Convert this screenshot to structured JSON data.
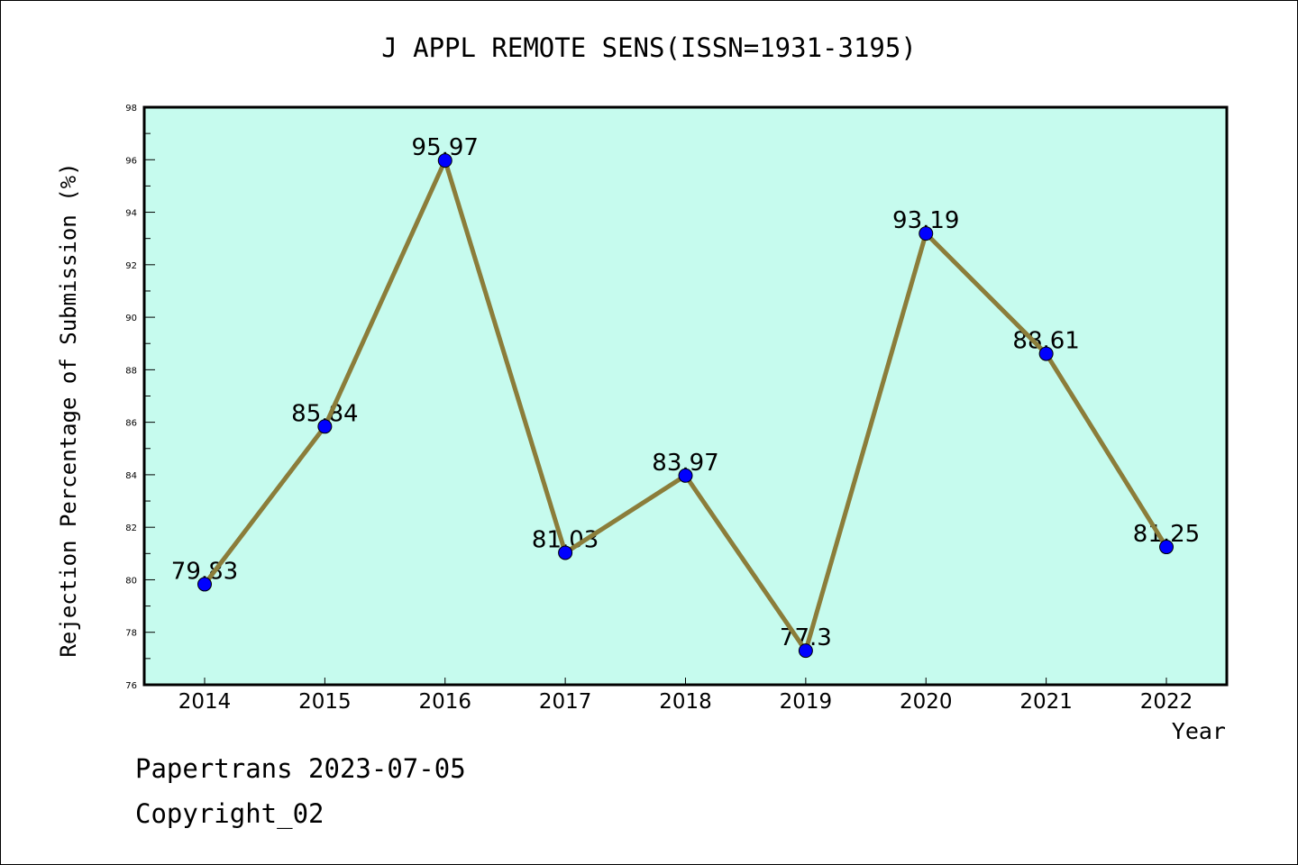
{
  "chart_data": {
    "type": "line",
    "title": "J APPL REMOTE SENS(ISSN=1931-3195)",
    "xlabel": "Year",
    "ylabel": "Rejection Percentage of Submission (%)",
    "categories": [
      "2014",
      "2015",
      "2016",
      "2017",
      "2018",
      "2019",
      "2020",
      "2021",
      "2022"
    ],
    "values": [
      79.83,
      85.84,
      95.97,
      81.03,
      83.97,
      77.3,
      93.19,
      88.61,
      81.25
    ],
    "data_labels": [
      "79.83",
      "85.84",
      "95.97",
      "81.03",
      "83.97",
      "77.3",
      "93.19",
      "88.61",
      "81.25"
    ],
    "ylim": [
      76,
      98
    ],
    "yticks": [
      76,
      78,
      80,
      82,
      84,
      86,
      88,
      90,
      92,
      94,
      96,
      98
    ],
    "grid": false,
    "colors": {
      "background": "#C6FBEE",
      "line": "#8B7D3A",
      "marker": "#0000FF"
    }
  },
  "footer": {
    "line1": "Papertrans 2023-07-05",
    "line2": "Copyright_02"
  }
}
